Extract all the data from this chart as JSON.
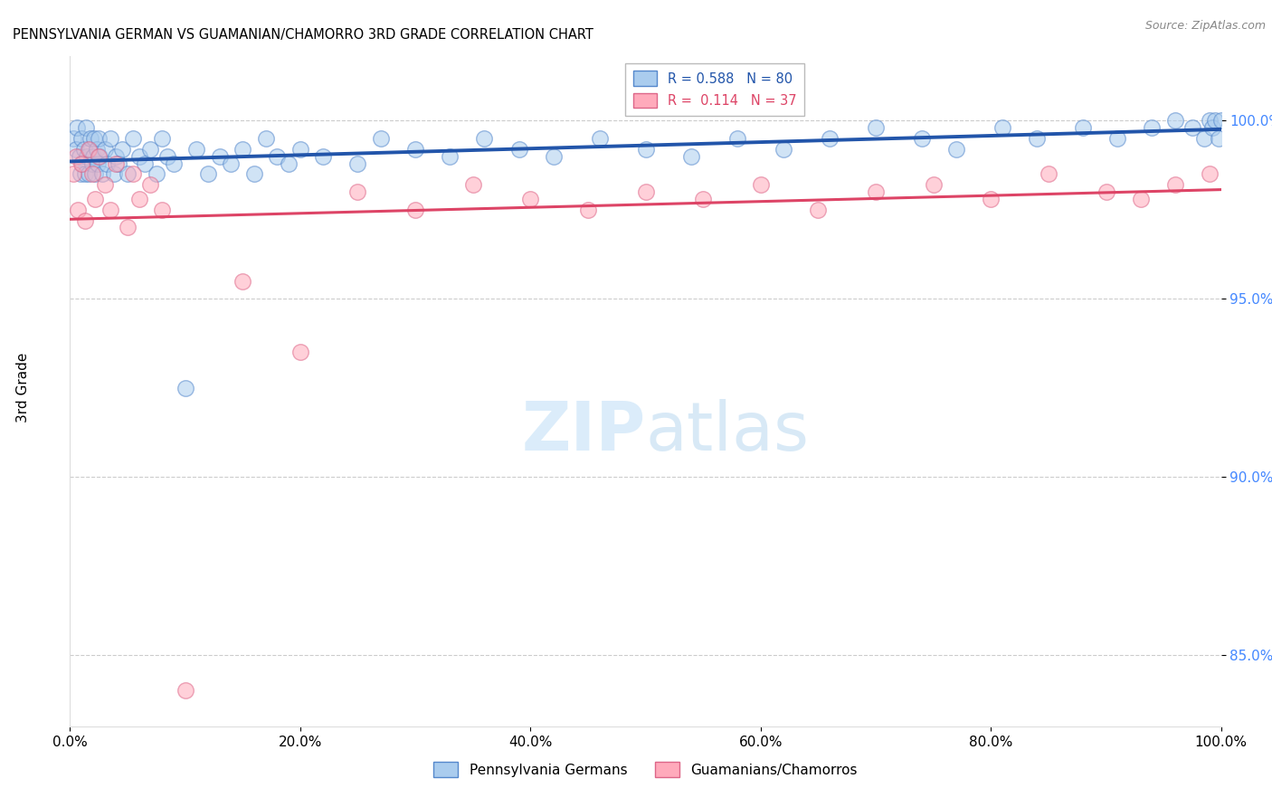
{
  "title": "PENNSYLVANIA GERMAN VS GUAMANIAN/CHAMORRO 3RD GRADE CORRELATION CHART",
  "source": "Source: ZipAtlas.com",
  "ylabel": "3rd Grade",
  "blue_label": "Pennsylvania Germans",
  "pink_label": "Guamanians/Chamorros",
  "blue_R": 0.588,
  "blue_N": 80,
  "pink_R": 0.114,
  "pink_N": 37,
  "xlim": [
    0.0,
    100.0
  ],
  "ylim": [
    83.0,
    101.8
  ],
  "yticks": [
    85.0,
    90.0,
    95.0,
    100.0
  ],
  "xticks": [
    0.0,
    20.0,
    40.0,
    60.0,
    80.0,
    100.0
  ],
  "blue_face_color": "#aaccee",
  "blue_edge_color": "#5588cc",
  "pink_face_color": "#ffaabb",
  "pink_edge_color": "#dd6688",
  "blue_line_color": "#2255aa",
  "pink_line_color": "#dd4466",
  "ytick_color": "#4488ff",
  "grid_color": "#cccccc",
  "blue_scatter_x": [
    0.3,
    0.5,
    0.6,
    0.8,
    0.9,
    1.0,
    1.1,
    1.2,
    1.3,
    1.4,
    1.5,
    1.6,
    1.7,
    1.8,
    1.9,
    2.0,
    2.1,
    2.2,
    2.3,
    2.4,
    2.5,
    2.6,
    2.8,
    3.0,
    3.2,
    3.5,
    3.8,
    4.0,
    4.2,
    4.5,
    5.0,
    5.5,
    6.0,
    6.5,
    7.0,
    7.5,
    8.0,
    8.5,
    9.0,
    10.0,
    11.0,
    12.0,
    13.0,
    14.0,
    15.0,
    16.0,
    17.0,
    18.0,
    19.0,
    20.0,
    22.0,
    25.0,
    27.0,
    30.0,
    33.0,
    36.0,
    39.0,
    42.0,
    46.0,
    50.0,
    54.0,
    58.0,
    62.0,
    66.0,
    70.0,
    74.0,
    77.0,
    81.0,
    84.0,
    88.0,
    91.0,
    94.0,
    96.0,
    97.5,
    98.5,
    99.0,
    99.2,
    99.5,
    99.8,
    100.0
  ],
  "blue_scatter_y": [
    99.5,
    99.2,
    99.8,
    99.0,
    98.5,
    99.5,
    98.8,
    99.2,
    98.5,
    99.8,
    99.0,
    98.5,
    99.2,
    99.5,
    98.8,
    99.0,
    99.5,
    98.5,
    99.2,
    98.8,
    99.5,
    99.0,
    98.5,
    99.2,
    98.8,
    99.5,
    98.5,
    99.0,
    98.8,
    99.2,
    98.5,
    99.5,
    99.0,
    98.8,
    99.2,
    98.5,
    99.5,
    99.0,
    98.8,
    92.5,
    99.2,
    98.5,
    99.0,
    98.8,
    99.2,
    98.5,
    99.5,
    99.0,
    98.8,
    99.2,
    99.0,
    98.8,
    99.5,
    99.2,
    99.0,
    99.5,
    99.2,
    99.0,
    99.5,
    99.2,
    99.0,
    99.5,
    99.2,
    99.5,
    99.8,
    99.5,
    99.2,
    99.8,
    99.5,
    99.8,
    99.5,
    99.8,
    100.0,
    99.8,
    99.5,
    100.0,
    99.8,
    100.0,
    99.5,
    100.0
  ],
  "pink_scatter_x": [
    0.3,
    0.5,
    0.7,
    1.0,
    1.3,
    1.6,
    1.9,
    2.2,
    2.5,
    3.0,
    3.5,
    4.0,
    5.0,
    5.5,
    6.0,
    7.0,
    8.0,
    10.0,
    15.0,
    20.0,
    25.0,
    30.0,
    35.0,
    40.0,
    45.0,
    50.0,
    55.0,
    60.0,
    65.0,
    70.0,
    75.0,
    80.0,
    85.0,
    90.0,
    93.0,
    96.0,
    99.0
  ],
  "pink_scatter_y": [
    98.5,
    99.0,
    97.5,
    98.8,
    97.2,
    99.2,
    98.5,
    97.8,
    99.0,
    98.2,
    97.5,
    98.8,
    97.0,
    98.5,
    97.8,
    98.2,
    97.5,
    84.0,
    95.5,
    93.5,
    98.0,
    97.5,
    98.2,
    97.8,
    97.5,
    98.0,
    97.8,
    98.2,
    97.5,
    98.0,
    98.2,
    97.8,
    98.5,
    98.0,
    97.8,
    98.2,
    98.5
  ]
}
